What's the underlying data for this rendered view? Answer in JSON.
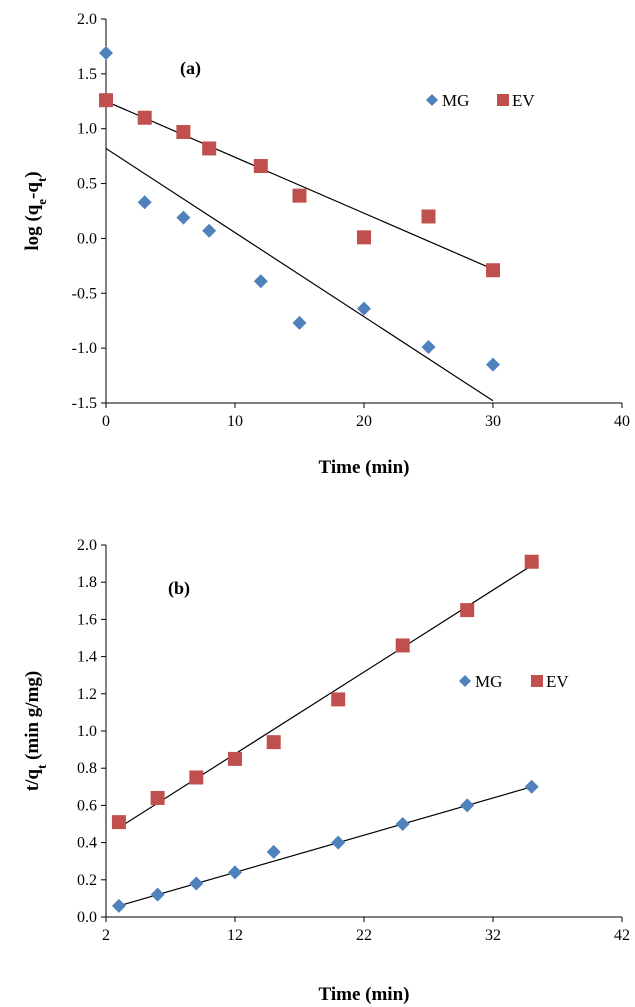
{
  "chart_data": [
    {
      "type": "scatter",
      "panel_label": "(a)",
      "xlabel": "Time (min)",
      "ylabel_parts": [
        "log (q",
        "e",
        "-q",
        "t",
        ")"
      ],
      "xlim": [
        0,
        40
      ],
      "ylim": [
        -1.5,
        2.0
      ],
      "xticks": [
        0,
        10,
        20,
        30,
        40
      ],
      "yticks": [
        -1.5,
        -1.0,
        -0.5,
        0.0,
        0.5,
        1.0,
        1.5,
        2.0
      ],
      "tick_decimals": 1,
      "x_tick_decimals": 0,
      "grid": false,
      "legend_position": "top-right",
      "series": [
        {
          "name": "MG",
          "marker": "diamond",
          "color": "#4F81BD",
          "x": [
            0,
            3,
            6,
            8,
            12,
            15,
            20,
            25,
            30
          ],
          "y": [
            1.69,
            0.33,
            0.19,
            0.07,
            -0.39,
            -0.77,
            -0.64,
            -0.99,
            -1.15
          ],
          "trendline": {
            "x": [
              0,
              30
            ],
            "y": [
              0.82,
              -1.48
            ]
          }
        },
        {
          "name": "EV",
          "marker": "square",
          "color": "#C0504D",
          "x": [
            0,
            3,
            6,
            8,
            12,
            15,
            20,
            25,
            30
          ],
          "y": [
            1.26,
            1.1,
            0.97,
            0.82,
            0.66,
            0.39,
            0.01,
            0.2,
            -0.29
          ],
          "trendline": {
            "x": [
              0,
              30
            ],
            "y": [
              1.25,
              -0.28
            ]
          }
        }
      ]
    },
    {
      "type": "scatter",
      "panel_label": "(b)",
      "xlabel": "Time (min)",
      "ylabel_parts": [
        "t/q",
        "t",
        " (min g/mg)",
        "",
        ""
      ],
      "xlim": [
        2,
        42
      ],
      "ylim": [
        0,
        2.0
      ],
      "xticks": [
        2,
        12,
        22,
        32,
        42
      ],
      "yticks": [
        0.0,
        0.2,
        0.4,
        0.6,
        0.8,
        1.0,
        1.2,
        1.4,
        1.6,
        1.8,
        2.0
      ],
      "tick_decimals": 1,
      "x_tick_decimals": 0,
      "grid": false,
      "legend_position": "middle-right",
      "series": [
        {
          "name": "MG",
          "marker": "diamond",
          "color": "#4F81BD",
          "x": [
            3,
            6,
            9,
            12,
            15,
            20,
            25,
            30,
            35
          ],
          "y": [
            0.06,
            0.12,
            0.18,
            0.24,
            0.35,
            0.4,
            0.5,
            0.6,
            0.7
          ],
          "trendline": {
            "x": [
              3,
              35
            ],
            "y": [
              0.06,
              0.7
            ]
          }
        },
        {
          "name": "EV",
          "marker": "square",
          "color": "#C0504D",
          "x": [
            3,
            6,
            9,
            12,
            15,
            20,
            25,
            30,
            35
          ],
          "y": [
            0.51,
            0.64,
            0.75,
            0.85,
            0.94,
            1.17,
            1.46,
            1.65,
            1.91
          ],
          "trendline": {
            "x": [
              3,
              35
            ],
            "y": [
              0.48,
              1.89
            ]
          }
        }
      ]
    }
  ]
}
